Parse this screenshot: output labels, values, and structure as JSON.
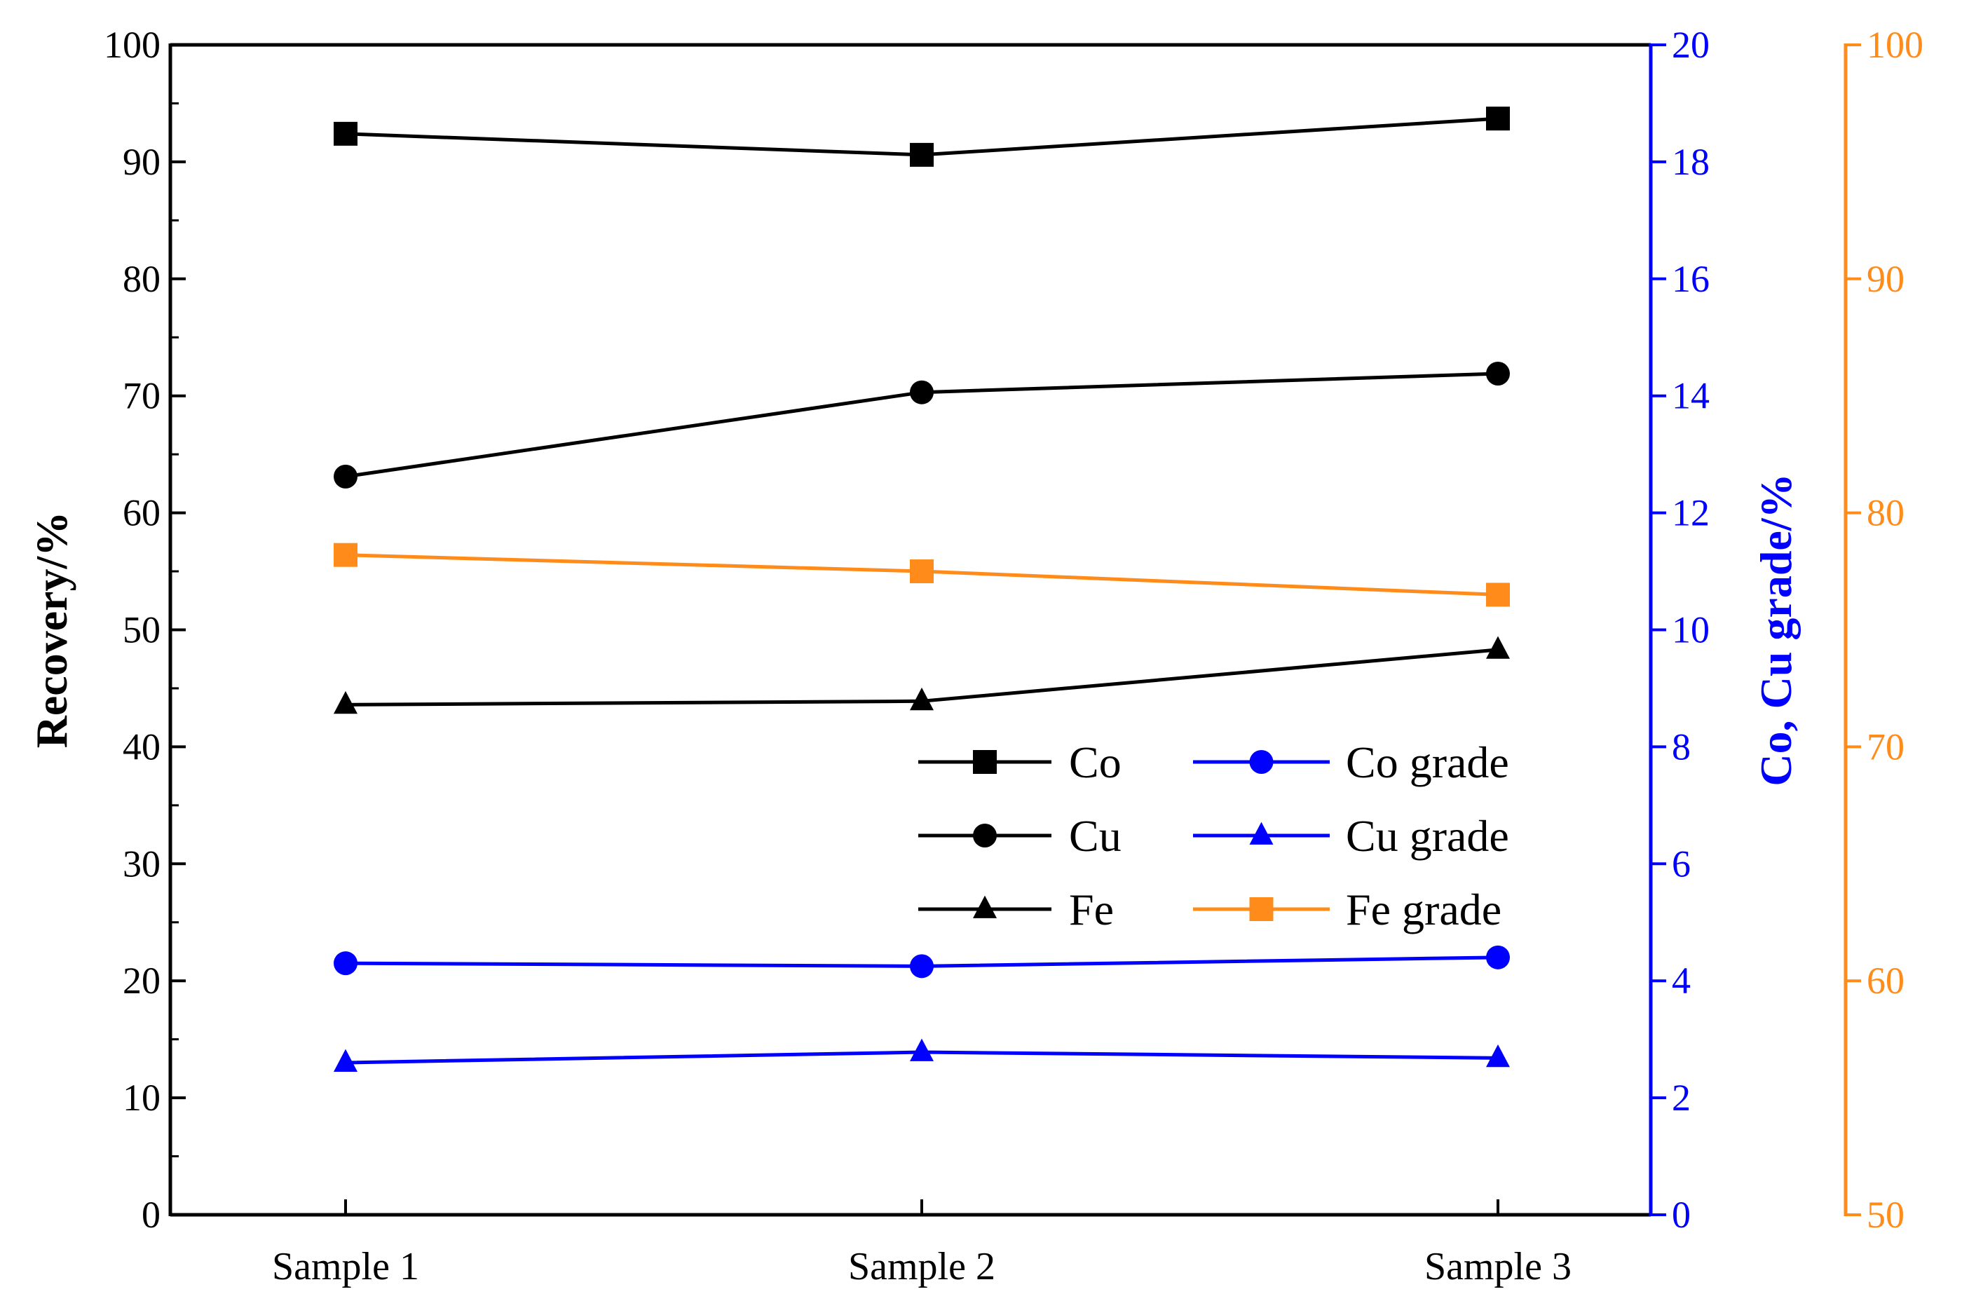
{
  "chart_data": {
    "type": "line",
    "categories": [
      "Sample 1",
      "Sample 2",
      "Sample 3"
    ],
    "left_axis": {
      "label": "Recovery/%",
      "ylim": [
        0,
        100
      ],
      "ticks": [
        "0",
        "10",
        "20",
        "30",
        "40",
        "50",
        "60",
        "70",
        "80",
        "90",
        "100"
      ],
      "color": "#000000"
    },
    "right_axis_1": {
      "label": "Co, Cu grade/%",
      "ylim": [
        0,
        20
      ],
      "ticks": [
        "0",
        "2",
        "4",
        "6",
        "8",
        "10",
        "12",
        "14",
        "16",
        "18",
        "20"
      ],
      "color": "#0000ff"
    },
    "right_axis_2": {
      "label": "",
      "ylim": [
        50,
        100
      ],
      "ticks": [
        "50",
        "60",
        "70",
        "80",
        "90",
        "100"
      ],
      "color": "#ff8c1a"
    },
    "series": [
      {
        "name": "Co",
        "axis": "left",
        "marker": "square",
        "color": "#000000",
        "values": [
          92.4,
          90.6,
          93.7
        ]
      },
      {
        "name": "Cu",
        "axis": "left",
        "marker": "circle",
        "color": "#000000",
        "values": [
          63.1,
          70.3,
          71.9
        ]
      },
      {
        "name": "Fe",
        "axis": "left",
        "marker": "triangle",
        "color": "#000000",
        "values": [
          43.6,
          43.9,
          48.3
        ]
      },
      {
        "name": "Co grade",
        "axis": "right1",
        "marker": "circle",
        "color": "#0000ff",
        "values": [
          4.3,
          4.25,
          4.4
        ]
      },
      {
        "name": "Cu grade",
        "axis": "right1",
        "marker": "triangle",
        "color": "#0000ff",
        "values": [
          2.6,
          2.78,
          2.68
        ]
      },
      {
        "name": "Fe grade",
        "axis": "right2",
        "marker": "square",
        "color": "#ff8c1a",
        "values": [
          78.2,
          77.5,
          76.5
        ]
      }
    ],
    "legend": {
      "placement": "center-right inside plot",
      "entries": [
        "Co",
        "Cu",
        "Fe",
        "Co grade",
        "Cu grade",
        "Fe grade"
      ]
    }
  }
}
